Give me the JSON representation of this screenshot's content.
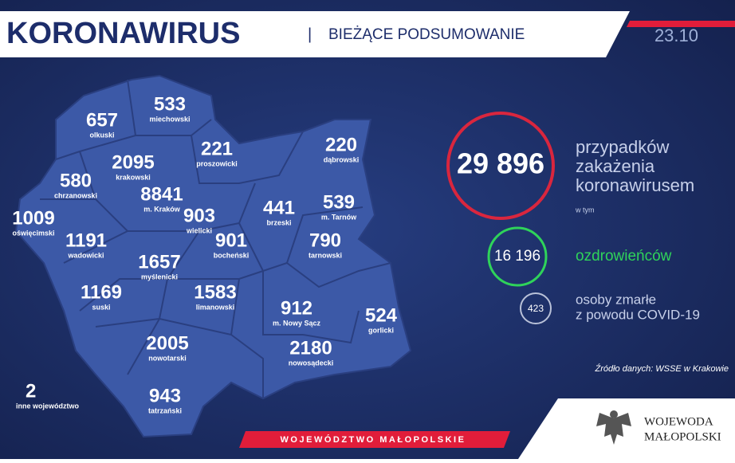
{
  "header": {
    "title": "KORONAWIRUS",
    "separator": "|",
    "subtitle": "BIEŻĄCE PODSUMOWANIE",
    "date": "23.10"
  },
  "regions": [
    {
      "value": "657",
      "label": "olkuski"
    },
    {
      "value": "533",
      "label": "miechowski"
    },
    {
      "value": "2095",
      "label": "krakowski"
    },
    {
      "value": "221",
      "label": "proszowicki"
    },
    {
      "value": "220",
      "label": "dąbrowski"
    },
    {
      "value": "580",
      "label": "chrzanowski"
    },
    {
      "value": "8841",
      "label": "m. Kraków"
    },
    {
      "value": "903",
      "label": "wielicki"
    },
    {
      "value": "441",
      "label": "brzeski"
    },
    {
      "value": "539",
      "label": "m. Tarnów"
    },
    {
      "value": "1009",
      "label": "oświęcimski"
    },
    {
      "value": "1191",
      "label": "wadowicki"
    },
    {
      "value": "901",
      "label": "bocheński"
    },
    {
      "value": "790",
      "label": "tarnowski"
    },
    {
      "value": "1657",
      "label": "myślenicki"
    },
    {
      "value": "1583",
      "label": "limanowski"
    },
    {
      "value": "1169",
      "label": "suski"
    },
    {
      "value": "912",
      "label": "m. Nowy Sącz"
    },
    {
      "value": "524",
      "label": "gorlicki"
    },
    {
      "value": "2005",
      "label": "nowotarski"
    },
    {
      "value": "2180",
      "label": "nowosądecki"
    },
    {
      "value": "943",
      "label": "tatrzański"
    },
    {
      "value": "2",
      "label": "inne województwo"
    }
  ],
  "summary": {
    "cases": {
      "value": "29 896",
      "lines": [
        "przypadków",
        "zakażenia",
        "koronawirusem"
      ],
      "note": "w tym"
    },
    "recovered": {
      "value": "16 196",
      "label": "ozdrowieńców"
    },
    "deaths": {
      "value": "423",
      "lines": [
        "osoby zmarłe",
        "z powodu COVID-19"
      ]
    },
    "source": "Źródło danych: WSSE w Krakowie"
  },
  "footer": {
    "banner": "WOJEWÓDZTWO MAŁOPOLSKIE",
    "office": [
      "WOJEWODA",
      "MAŁOPOLSKI"
    ]
  }
}
